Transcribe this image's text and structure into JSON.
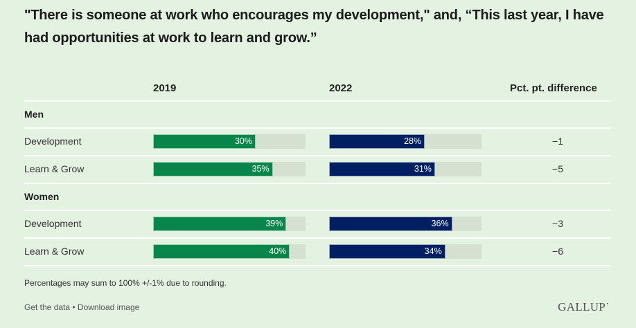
{
  "title": "\"There is someone at work who encourages my development,\" and, “This last year, I have had opportunities at work to learn and grow.”",
  "headers": {
    "col1": "2019",
    "col2": "2022",
    "col3": "Pct. pt. difference"
  },
  "colors": {
    "bar_2019": "#07854a",
    "bar_2022": "#001f63",
    "track": "#d4e1d1",
    "background": "#e4f2e1"
  },
  "chart_data": {
    "type": "bar",
    "title": "\"There is someone at work who encourages my development,\" and, “This last year, I have had opportunities at work to learn and grow.”",
    "xlim": [
      0,
      100
    ],
    "groups": [
      {
        "name": "Men",
        "rows": [
          {
            "label": "Development",
            "v2019": 30,
            "v2022": 28,
            "label2019": "30%",
            "label2022": "28%",
            "diff": "−1"
          },
          {
            "label": "Learn & Grow",
            "v2019": 35,
            "v2022": 31,
            "label2019": "35%",
            "label2022": "31%",
            "diff": "−5"
          }
        ]
      },
      {
        "name": "Women",
        "rows": [
          {
            "label": "Development",
            "v2019": 39,
            "v2022": 36,
            "label2019": "39%",
            "label2022": "36%",
            "diff": "−3"
          },
          {
            "label": "Learn & Grow",
            "v2019": 40,
            "v2022": 34,
            "label2019": "40%",
            "label2022": "34%",
            "diff": "−6"
          }
        ]
      }
    ],
    "series": [
      {
        "name": "2019",
        "values": [
          30,
          35,
          39,
          40
        ]
      },
      {
        "name": "2022",
        "values": [
          28,
          31,
          36,
          34
        ]
      }
    ],
    "categories": [
      "Men - Development",
      "Men - Learn & Grow",
      "Women - Development",
      "Women - Learn & Grow"
    ]
  },
  "footnote": "Percentages may sum to 100% +/-1% due to rounding.",
  "links": {
    "get_data": "Get the data",
    "separator": " • ",
    "download": "Download image"
  },
  "logo": "GALLUP˙"
}
